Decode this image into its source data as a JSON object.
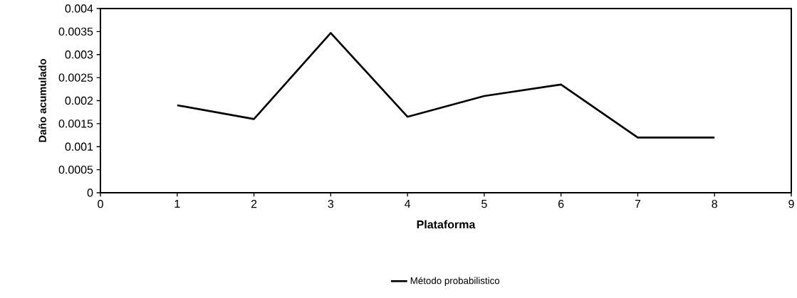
{
  "chart_data": {
    "type": "line",
    "xlabel": "Plataforma",
    "ylabel": "Daño acumulado",
    "x": [
      1,
      2,
      3,
      4,
      5,
      6,
      7,
      8
    ],
    "series": [
      {
        "name": "Método probabilistico",
        "color": "#000000",
        "values": [
          0.0019,
          0.0016,
          0.00347,
          0.00165,
          0.0021,
          0.00235,
          0.0012,
          0.0012
        ]
      }
    ],
    "xlim": [
      0,
      9
    ],
    "xticks": [
      0,
      1,
      2,
      3,
      4,
      5,
      6,
      7,
      8,
      9
    ],
    "ylim": [
      0,
      0.004
    ],
    "yticks": [
      0,
      0.0005,
      0.001,
      0.0015,
      0.002,
      0.0025,
      0.003,
      0.0035,
      0.004
    ],
    "grid": false,
    "legend": "bottom",
    "marker": "none",
    "line_style": "solid"
  }
}
